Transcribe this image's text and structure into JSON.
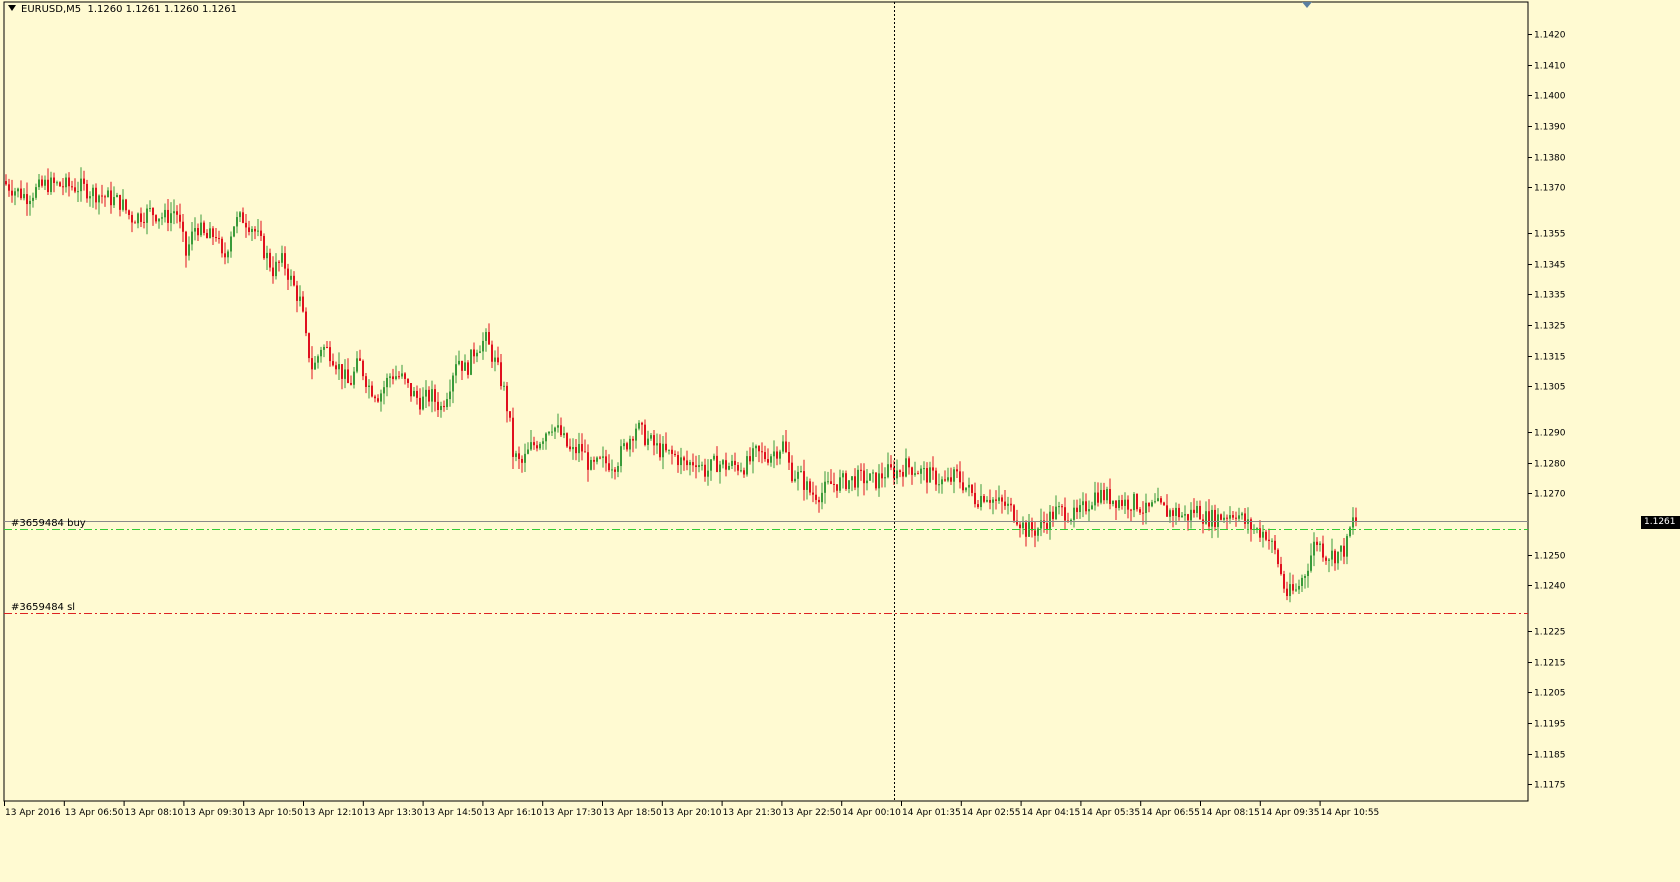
{
  "header": {
    "symbol": "EURUSD,M5",
    "quote": "1.1260 1.1261 1.1260 1.1261"
  },
  "levels": {
    "buy_label": "#3659484 buy",
    "sl_label": "#3659484 sl",
    "buy_price": 1.12585,
    "sl_price": 1.1231,
    "current_price": 1.1261,
    "current_price_label": "1.1261"
  },
  "colors": {
    "background": "#fffad2",
    "bull": "#3a9a3a",
    "bear": "#e0101e",
    "buy_line": "#33cc33",
    "sl_line": "#dd2222",
    "axis": "#000000"
  },
  "chart_data": {
    "type": "candlestick",
    "y_axis_ticks": [
      "1.1420",
      "1.1410",
      "1.1400",
      "1.1390",
      "1.1380",
      "1.1370",
      "1.1355",
      "1.1345",
      "1.1335",
      "1.1325",
      "1.1315",
      "1.1305",
      "1.1290",
      "1.1280",
      "1.1270",
      "1.1250",
      "1.1240",
      "1.1225",
      "1.1215",
      "1.1205",
      "1.1195",
      "1.1185",
      "1.1175"
    ],
    "x_axis_labels": [
      "13 Apr 2016",
      "13 Apr 06:50",
      "13 Apr 08:10",
      "13 Apr 09:30",
      "13 Apr 10:50",
      "13 Apr 12:10",
      "13 Apr 13:30",
      "13 Apr 14:50",
      "13 Apr 16:10",
      "13 Apr 17:30",
      "13 Apr 18:50",
      "13 Apr 20:10",
      "13 Apr 21:30",
      "13 Apr 22:50",
      "14 Apr 00:10",
      "14 Apr 01:35",
      "14 Apr 02:55",
      "14 Apr 04:15",
      "14 Apr 05:35",
      "14 Apr 06:55",
      "14 Apr 08:15",
      "14 Apr 09:35",
      "14 Apr 10:55"
    ],
    "ylim": [
      1.11695,
      1.14305
    ],
    "price_path": [
      [
        0,
        1.1372
      ],
      [
        25,
        1.1367
      ],
      [
        45,
        1.1371
      ],
      [
        80,
        1.137
      ],
      [
        95,
        1.1368
      ],
      [
        120,
        1.1365
      ],
      [
        130,
        1.136
      ],
      [
        150,
        1.1362
      ],
      [
        165,
        1.136
      ],
      [
        175,
        1.1363
      ],
      [
        185,
        1.1348
      ],
      [
        195,
        1.1358
      ],
      [
        205,
        1.1353
      ],
      [
        215,
        1.1355
      ],
      [
        222,
        1.1345
      ],
      [
        232,
        1.1358
      ],
      [
        242,
        1.136
      ],
      [
        252,
        1.1357
      ],
      [
        262,
        1.135
      ],
      [
        272,
        1.1343
      ],
      [
        282,
        1.1346
      ],
      [
        292,
        1.1338
      ],
      [
        300,
        1.1332
      ],
      [
        305,
        1.132
      ],
      [
        312,
        1.131
      ],
      [
        320,
        1.1318
      ],
      [
        330,
        1.1316
      ],
      [
        340,
        1.131
      ],
      [
        348,
        1.1305
      ],
      [
        358,
        1.1313
      ],
      [
        368,
        1.1305
      ],
      [
        378,
        1.1302
      ],
      [
        390,
        1.1309
      ],
      [
        400,
        1.1308
      ],
      [
        410,
        1.1303
      ],
      [
        420,
        1.13
      ],
      [
        430,
        1.1302
      ],
      [
        440,
        1.1298
      ],
      [
        448,
        1.1305
      ],
      [
        456,
        1.1315
      ],
      [
        465,
        1.131
      ],
      [
        475,
        1.1318
      ],
      [
        485,
        1.132
      ],
      [
        495,
        1.1312
      ],
      [
        502,
        1.1305
      ],
      [
        508,
        1.1295
      ],
      [
        512,
        1.1283
      ],
      [
        520,
        1.1279
      ],
      [
        530,
        1.1285
      ],
      [
        540,
        1.1288
      ],
      [
        550,
        1.1293
      ],
      [
        560,
        1.1289
      ],
      [
        570,
        1.1283
      ],
      [
        580,
        1.1285
      ],
      [
        590,
        1.1278
      ],
      [
        600,
        1.128
      ],
      [
        615,
        1.128
      ],
      [
        625,
        1.1286
      ],
      [
        635,
        1.1292
      ],
      [
        645,
        1.1288
      ],
      [
        655,
        1.1285
      ],
      [
        665,
        1.1283
      ],
      [
        675,
        1.1282
      ],
      [
        685,
        1.1279
      ],
      [
        695,
        1.1281
      ],
      [
        705,
        1.1277
      ],
      [
        715,
        1.128
      ],
      [
        725,
        1.1279
      ],
      [
        735,
        1.1279
      ],
      [
        745,
        1.1279
      ],
      [
        755,
        1.1283
      ],
      [
        765,
        1.1282
      ],
      [
        775,
        1.1284
      ],
      [
        782,
        1.1286
      ],
      [
        790,
        1.1277
      ],
      [
        800,
        1.1275
      ],
      [
        810,
        1.127
      ],
      [
        820,
        1.127
      ],
      [
        830,
        1.1273
      ],
      [
        845,
        1.1274
      ],
      [
        860,
        1.1275
      ],
      [
        875,
        1.1274
      ],
      [
        885,
        1.1277
      ],
      [
        895,
        1.1277
      ],
      [
        905,
        1.1279
      ],
      [
        915,
        1.1278
      ],
      [
        925,
        1.1276
      ],
      [
        935,
        1.1275
      ],
      [
        945,
        1.1273
      ],
      [
        955,
        1.1276
      ],
      [
        965,
        1.1272
      ],
      [
        975,
        1.1268
      ],
      [
        985,
        1.127
      ],
      [
        995,
        1.1267
      ],
      [
        1005,
        1.1266
      ],
      [
        1015,
        1.1263
      ],
      [
        1025,
        1.1258
      ],
      [
        1035,
        1.1258
      ],
      [
        1045,
        1.1261
      ],
      [
        1055,
        1.1264
      ],
      [
        1065,
        1.1264
      ],
      [
        1075,
        1.1262
      ],
      [
        1085,
        1.1266
      ],
      [
        1095,
        1.127
      ],
      [
        1105,
        1.1269
      ],
      [
        1115,
        1.1268
      ],
      [
        1125,
        1.1267
      ],
      [
        1135,
        1.1267
      ],
      [
        1145,
        1.1264
      ],
      [
        1155,
        1.1266
      ],
      [
        1165,
        1.1264
      ],
      [
        1175,
        1.1264
      ],
      [
        1185,
        1.1262
      ],
      [
        1195,
        1.1265
      ],
      [
        1205,
        1.1262
      ],
      [
        1215,
        1.1262
      ],
      [
        1225,
        1.1263
      ],
      [
        1235,
        1.1264
      ],
      [
        1245,
        1.126
      ],
      [
        1255,
        1.1258
      ],
      [
        1265,
        1.1257
      ],
      [
        1275,
        1.125
      ],
      [
        1285,
        1.1237
      ],
      [
        1295,
        1.1238
      ],
      [
        1305,
        1.1245
      ],
      [
        1315,
        1.1255
      ],
      [
        1325,
        1.125
      ],
      [
        1335,
        1.125
      ],
      [
        1345,
        1.1252
      ],
      [
        1351,
        1.1261
      ]
    ]
  }
}
